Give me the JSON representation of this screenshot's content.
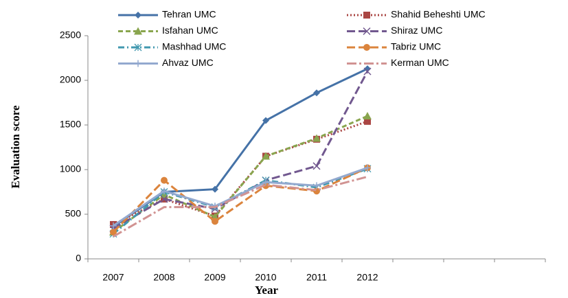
{
  "chart_data": {
    "type": "line",
    "x_label": "Year",
    "y_label": "Evaluation score",
    "categories": [
      "2007",
      "2008",
      "2009",
      "2010",
      "2011",
      "2012",
      null,
      null,
      null
    ],
    "series": [
      {
        "name": "Tehran UMC",
        "color": "#4572a7",
        "dash": "solid",
        "marker": "diamond",
        "values": [
          360,
          750,
          780,
          1550,
          1860,
          2130,
          null,
          null,
          null
        ]
      },
      {
        "name": "Shahid Beheshti UMC",
        "color": "#aa4643",
        "dash": "dotted",
        "marker": "square",
        "values": [
          385,
          670,
          480,
          1150,
          1340,
          1540,
          null,
          null,
          null
        ]
      },
      {
        "name": "Isfahan UMC",
        "color": "#89a54e",
        "dash": "dashed",
        "marker": "triangle",
        "values": [
          300,
          720,
          470,
          1150,
          1350,
          1600,
          null,
          null,
          null
        ]
      },
      {
        "name": "Shiraz UMC",
        "color": "#71588f",
        "dash": "longdash",
        "marker": "x",
        "values": [
          340,
          670,
          560,
          880,
          1040,
          2100,
          null,
          null,
          null
        ]
      },
      {
        "name": "Mashhad UMC",
        "color": "#4198af",
        "dash": "dashdot",
        "marker": "asterisk",
        "values": [
          280,
          750,
          580,
          880,
          800,
          1010,
          null,
          null,
          null
        ]
      },
      {
        "name": "Tabriz UMC",
        "color": "#db843d",
        "dash": "longdash",
        "marker": "circle",
        "values": [
          300,
          880,
          420,
          820,
          760,
          1020,
          null,
          null,
          null
        ]
      },
      {
        "name": "Ahvaz UMC",
        "color": "#93a9cf",
        "dash": "solid",
        "marker": "plus",
        "values": [
          370,
          760,
          590,
          860,
          820,
          1020,
          null,
          null,
          null
        ]
      },
      {
        "name": "Kerman UMC",
        "color": "#d19392",
        "dash": "longdashdot",
        "marker": "none",
        "values": [
          250,
          580,
          580,
          830,
          770,
          920,
          null,
          null,
          null
        ]
      }
    ],
    "ylim": [
      0,
      2500
    ],
    "yticks": [
      0,
      500,
      1000,
      1500,
      2000,
      2500
    ],
    "grid": false
  }
}
